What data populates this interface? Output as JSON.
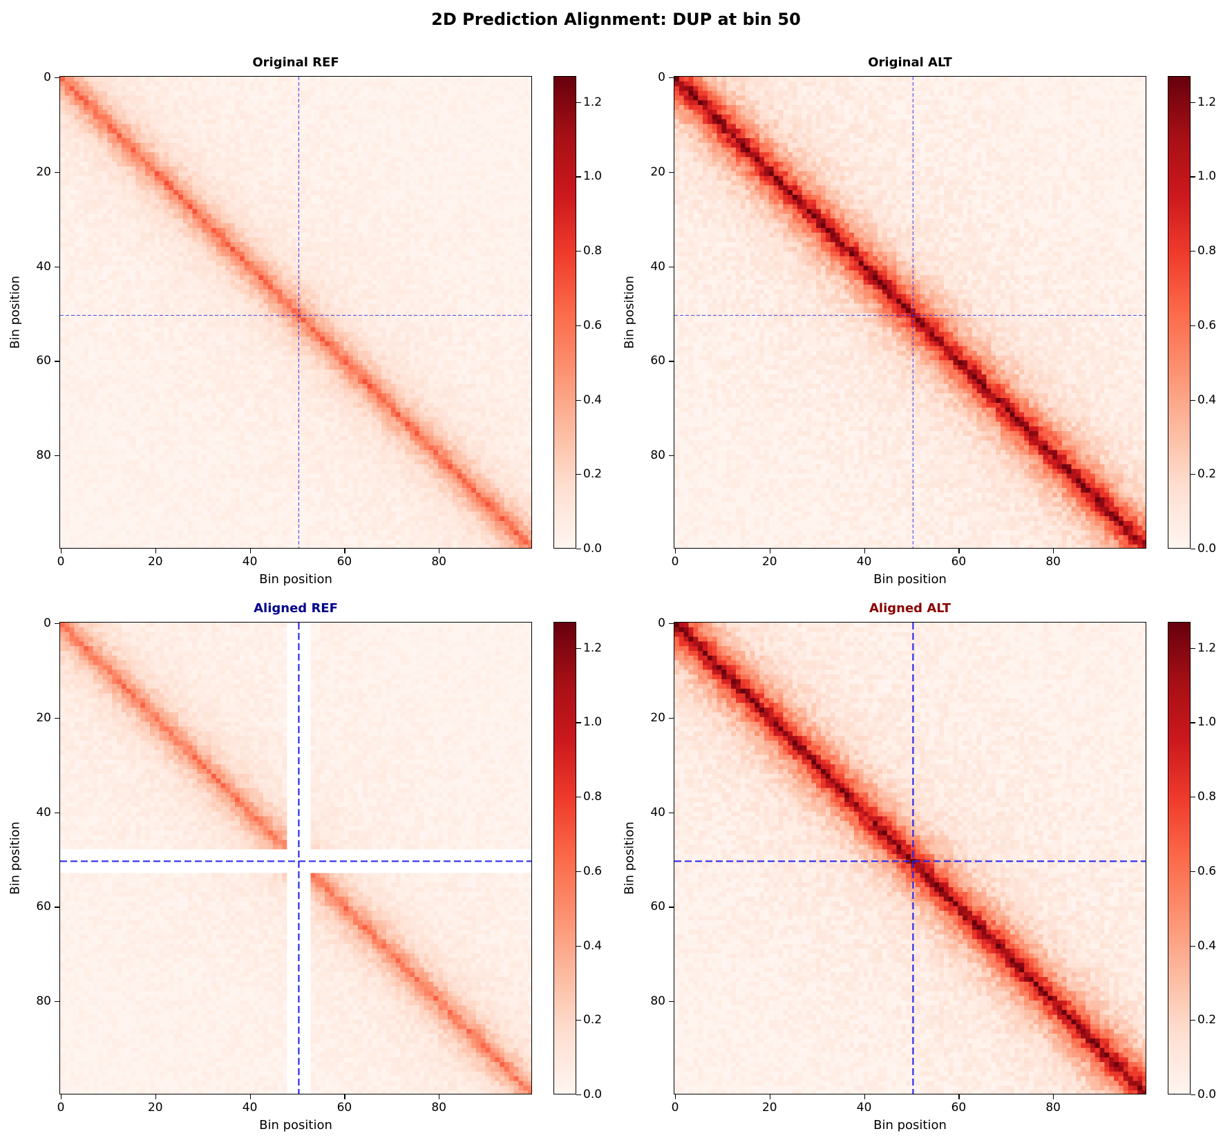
{
  "title": "2D Prediction Alignment: DUP at bin 50",
  "colors": {
    "cmap": [
      "#fff5f0",
      "#fee0d2",
      "#fcbba1",
      "#fc9272",
      "#fb6a4a",
      "#ef3b2c",
      "#cb181d",
      "#a50f15",
      "#67000d"
    ],
    "breakpoint_line": "#2222ee",
    "title_aligned_ref": "#00008b",
    "title_aligned_alt": "#8b0000",
    "title_default": "#000000"
  },
  "chart_data": [
    {
      "type": "heatmap",
      "title": "Original REF",
      "title_color": "#000000",
      "xlabel": "Bin position",
      "ylabel": "Bin position",
      "n_bins": 100,
      "x_ticks": [
        0,
        20,
        40,
        60,
        80
      ],
      "y_ticks": [
        0,
        20,
        40,
        60,
        80
      ],
      "breakpoint_bin": 50,
      "breakpoint_style": "thin",
      "masked_bins": [],
      "diagonal_peak": 0.55,
      "decay_width": 4.0,
      "background_level": 0.08,
      "noise": 0.1,
      "colorbar": {
        "vmin": 0.0,
        "vmax": 1.27,
        "ticks": [
          "0.0",
          "0.2",
          "0.4",
          "0.6",
          "0.8",
          "1.0",
          "1.2"
        ]
      }
    },
    {
      "type": "heatmap",
      "title": "Original ALT",
      "title_color": "#000000",
      "xlabel": "Bin position",
      "ylabel": "Bin position",
      "n_bins": 100,
      "x_ticks": [
        0,
        20,
        40,
        60,
        80
      ],
      "y_ticks": [
        0,
        20,
        40,
        60,
        80
      ],
      "breakpoint_bin": 50,
      "breakpoint_style": "thin",
      "masked_bins": [],
      "diagonal_peak": 1.1,
      "decay_width": 4.5,
      "background_level": 0.12,
      "noise": 0.14,
      "colorbar": {
        "vmin": 0.0,
        "vmax": 1.27,
        "ticks": [
          "0.0",
          "0.2",
          "0.4",
          "0.6",
          "0.8",
          "1.0",
          "1.2"
        ]
      }
    },
    {
      "type": "heatmap",
      "title": "Aligned REF",
      "title_color": "#00008b",
      "xlabel": "Bin position",
      "ylabel": "Bin position",
      "n_bins": 100,
      "x_ticks": [
        0,
        20,
        40,
        60,
        80
      ],
      "y_ticks": [
        0,
        20,
        40,
        60,
        80
      ],
      "breakpoint_bin": 50,
      "breakpoint_style": "thick",
      "masked_bins": [
        48,
        49,
        50,
        51,
        52
      ],
      "diagonal_peak": 0.5,
      "decay_width": 4.0,
      "background_level": 0.08,
      "noise": 0.1,
      "colorbar": {
        "vmin": 0.0,
        "vmax": 1.27,
        "ticks": [
          "0.0",
          "0.2",
          "0.4",
          "0.6",
          "0.8",
          "1.0",
          "1.2"
        ]
      }
    },
    {
      "type": "heatmap",
      "title": "Aligned ALT",
      "title_color": "#8b0000",
      "xlabel": "Bin position",
      "ylabel": "Bin position",
      "n_bins": 100,
      "x_ticks": [
        0,
        20,
        40,
        60,
        80
      ],
      "y_ticks": [
        0,
        20,
        40,
        60,
        80
      ],
      "breakpoint_bin": 50,
      "breakpoint_style": "thick",
      "masked_bins": [],
      "diagonal_peak": 1.1,
      "decay_width": 4.5,
      "background_level": 0.12,
      "noise": 0.14,
      "colorbar": {
        "vmin": 0.0,
        "vmax": 1.27,
        "ticks": [
          "0.0",
          "0.2",
          "0.4",
          "0.6",
          "0.8",
          "1.0",
          "1.2"
        ]
      }
    }
  ]
}
